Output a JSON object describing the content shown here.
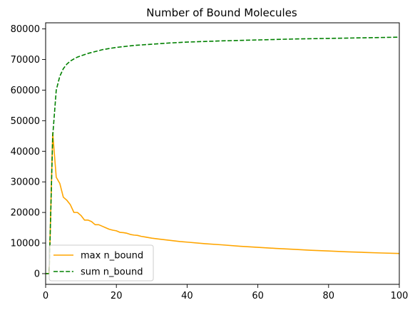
{
  "chart_data": {
    "type": "line",
    "title": "Number of Bound Molecules",
    "xlabel": "",
    "ylabel": "",
    "xlim": [
      0,
      100
    ],
    "ylim": [
      -3500,
      82000
    ],
    "xticks": [
      0,
      20,
      40,
      60,
      80,
      100
    ],
    "yticks": [
      0,
      10000,
      20000,
      30000,
      40000,
      50000,
      60000,
      70000,
      80000
    ],
    "grid": false,
    "legend_position": "lower-left",
    "series": [
      {
        "name": "max n_bound",
        "color": "#ffa500",
        "line_style": "solid",
        "points": [
          [
            0,
            0
          ],
          [
            1,
            0
          ],
          [
            2,
            46000
          ],
          [
            3,
            31500
          ],
          [
            4,
            29500
          ],
          [
            5,
            25000
          ],
          [
            6,
            24000
          ],
          [
            7,
            22500
          ],
          [
            8,
            20000
          ],
          [
            9,
            20000
          ],
          [
            10,
            19000
          ],
          [
            11,
            17500
          ],
          [
            12,
            17500
          ],
          [
            13,
            17000
          ],
          [
            14,
            16000
          ],
          [
            15,
            16000
          ],
          [
            16,
            15500
          ],
          [
            17,
            15000
          ],
          [
            18,
            14500
          ],
          [
            19,
            14200
          ],
          [
            20,
            14000
          ],
          [
            21,
            13500
          ],
          [
            22,
            13400
          ],
          [
            23,
            13200
          ],
          [
            24,
            12800
          ],
          [
            25,
            12600
          ],
          [
            26,
            12500
          ],
          [
            27,
            12200
          ],
          [
            28,
            12000
          ],
          [
            29,
            11800
          ],
          [
            30,
            11600
          ],
          [
            32,
            11300
          ],
          [
            35,
            10900
          ],
          [
            38,
            10500
          ],
          [
            40,
            10300
          ],
          [
            45,
            9800
          ],
          [
            50,
            9400
          ],
          [
            55,
            8950
          ],
          [
            60,
            8600
          ],
          [
            65,
            8250
          ],
          [
            70,
            7950
          ],
          [
            75,
            7650
          ],
          [
            80,
            7400
          ],
          [
            85,
            7150
          ],
          [
            90,
            6950
          ],
          [
            95,
            6750
          ],
          [
            100,
            6600
          ]
        ]
      },
      {
        "name": "sum n_bound",
        "color": "#008000",
        "line_style": "dashed",
        "points": [
          [
            0,
            0
          ],
          [
            1,
            0
          ],
          [
            2,
            45000
          ],
          [
            3,
            60000
          ],
          [
            4,
            64500
          ],
          [
            5,
            67000
          ],
          [
            6,
            68500
          ],
          [
            7,
            69500
          ],
          [
            8,
            70200
          ],
          [
            9,
            70800
          ],
          [
            10,
            71200
          ],
          [
            12,
            72000
          ],
          [
            14,
            72600
          ],
          [
            16,
            73200
          ],
          [
            18,
            73600
          ],
          [
            20,
            73950
          ],
          [
            25,
            74600
          ],
          [
            30,
            75000
          ],
          [
            35,
            75400
          ],
          [
            40,
            75700
          ],
          [
            50,
            76100
          ],
          [
            60,
            76400
          ],
          [
            70,
            76700
          ],
          [
            80,
            76900
          ],
          [
            90,
            77100
          ],
          [
            100,
            77300
          ]
        ]
      }
    ]
  }
}
